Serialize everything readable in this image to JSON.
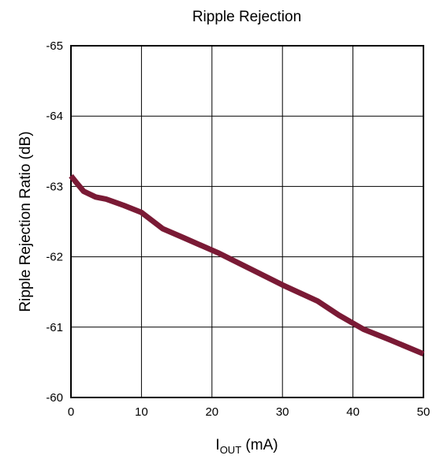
{
  "chart_data": {
    "type": "line",
    "title": "Ripple Rejection",
    "xlabel": {
      "main": "I",
      "subscript": "OUT",
      "suffix": " (mA)"
    },
    "ylabel": "Ripple Rejection Ratio (dB)",
    "xlim": [
      0,
      50
    ],
    "ylim": [
      -65,
      -60
    ],
    "x_ticks": [
      0,
      10,
      20,
      30,
      40,
      50
    ],
    "x_tick_labels": [
      "0",
      "10",
      "20",
      "30",
      "40",
      "50"
    ],
    "y_ticks": [
      -65,
      -64,
      -63,
      -62,
      -61,
      -60
    ],
    "y_tick_labels": [
      "-65",
      "-64",
      "-63",
      "-62",
      "-61",
      "-60"
    ],
    "y_axis_reversed": true,
    "grid": true,
    "legend": "none",
    "line_color": "#7a1a35",
    "series": [
      {
        "x": [
          0,
          0.8,
          1.8,
          3.5,
          5,
          7.5,
          10,
          13,
          16,
          21,
          26,
          30,
          35,
          38,
          41.5,
          45,
          50
        ],
        "values": [
          -63.15,
          -63.05,
          -62.93,
          -62.85,
          -62.82,
          -62.73,
          -62.63,
          -62.4,
          -62.27,
          -62.05,
          -61.8,
          -61.6,
          -61.37,
          -61.17,
          -60.97,
          -60.83,
          -60.62
        ]
      }
    ]
  }
}
